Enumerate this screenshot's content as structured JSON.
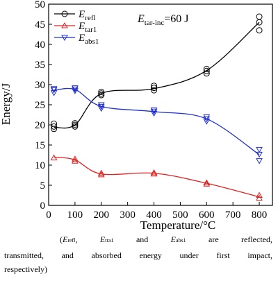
{
  "chart_data": {
    "type": "line",
    "title": "",
    "annotation": {
      "main": "E",
      "sub": "tar-inc",
      "tail": "=60 J"
    },
    "xlabel": "Temperature/°C",
    "ylabel": "Energy/J",
    "xlim": [
      0,
      850
    ],
    "ylim": [
      0,
      50
    ],
    "xticks": [
      0,
      100,
      200,
      300,
      400,
      500,
      600,
      700,
      800
    ],
    "yticks": [
      0,
      5,
      10,
      15,
      20,
      25,
      30,
      35,
      40,
      45,
      50
    ],
    "grid": false,
    "legend_position": "top-left",
    "x": [
      20,
      100,
      200,
      400,
      600,
      800
    ],
    "series": [
      {
        "name_main": "E",
        "name_sub": "refl",
        "color": "#000000",
        "marker": "circle",
        "points": [
          [
            20,
            19.0
          ],
          [
            20,
            19.6
          ],
          [
            20,
            20.3
          ],
          [
            100,
            19.6
          ],
          [
            100,
            20.0
          ],
          [
            100,
            20.4
          ],
          [
            200,
            27.4
          ],
          [
            200,
            27.8
          ],
          [
            200,
            28.2
          ],
          [
            400,
            28.6
          ],
          [
            400,
            29.2
          ],
          [
            400,
            29.7
          ],
          [
            600,
            32.8
          ],
          [
            600,
            33.4
          ],
          [
            600,
            33.9
          ],
          [
            800,
            43.5
          ],
          [
            800,
            45.5
          ],
          [
            800,
            46.9
          ]
        ],
        "curve": [
          [
            20,
            19.4
          ],
          [
            100,
            20.0
          ],
          [
            200,
            27.8
          ],
          [
            400,
            29.0
          ],
          [
            600,
            33.5
          ],
          [
            800,
            45.5
          ]
        ]
      },
      {
        "name_main": "E",
        "name_sub": "tar1",
        "color": "#e02020",
        "marker": "triangle-up",
        "points": [
          [
            20,
            11.8
          ],
          [
            100,
            11.0
          ],
          [
            100,
            11.5
          ],
          [
            200,
            7.6
          ],
          [
            200,
            8.0
          ],
          [
            400,
            7.8
          ],
          [
            400,
            8.1
          ],
          [
            600,
            5.3
          ],
          [
            600,
            5.6
          ],
          [
            800,
            1.8
          ],
          [
            800,
            2.5
          ]
        ],
        "curve": [
          [
            20,
            12.0
          ],
          [
            100,
            11.3
          ],
          [
            200,
            7.8
          ],
          [
            400,
            8.0
          ],
          [
            600,
            5.5
          ],
          [
            800,
            2.1
          ]
        ]
      },
      {
        "name_main": "E",
        "name_sub": "abs1",
        "color": "#1f2fd0",
        "marker": "triangle-down",
        "points": [
          [
            20,
            28.0
          ],
          [
            20,
            28.7
          ],
          [
            20,
            29.0
          ],
          [
            100,
            28.5
          ],
          [
            100,
            28.9
          ],
          [
            100,
            29.2
          ],
          [
            200,
            24.1
          ],
          [
            200,
            24.6
          ],
          [
            200,
            25.0
          ],
          [
            400,
            22.9
          ],
          [
            400,
            23.4
          ],
          [
            400,
            23.7
          ],
          [
            600,
            20.9
          ],
          [
            600,
            21.5
          ],
          [
            600,
            22.0
          ],
          [
            800,
            11.1
          ],
          [
            800,
            12.7
          ],
          [
            800,
            13.9
          ]
        ],
        "curve": [
          [
            20,
            28.6
          ],
          [
            100,
            28.8
          ],
          [
            200,
            24.6
          ],
          [
            400,
            23.3
          ],
          [
            600,
            21.5
          ],
          [
            800,
            12.6
          ]
        ]
      }
    ]
  },
  "caption": {
    "line1_open": "(",
    "e1_main": "E",
    "e1_sub": "refl",
    "sep1": ", ",
    "e2_main": "E",
    "e2_sub": "tra1",
    "sep2": " and ",
    "e3_main": "E",
    "e3_sub": "abs1",
    "line1_tail": " are reflected,",
    "line2": "transmitted, and absorbed energy under first impact,",
    "line3": "respectively)"
  }
}
